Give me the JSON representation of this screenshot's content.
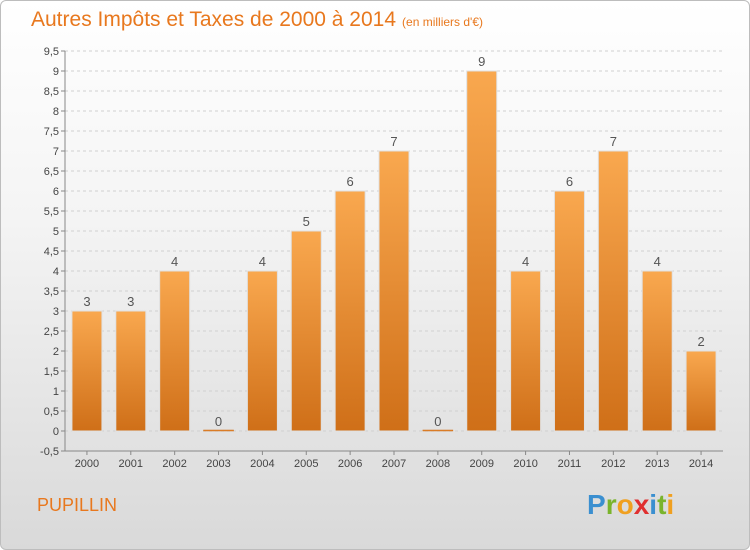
{
  "title": "Autres Impôts et Taxes de 2000 à 2014",
  "subtitle": "(en milliers d'€)",
  "commune": "PUPILLIN",
  "logo": {
    "text": "Proxiti",
    "letters": [
      {
        "ch": "P",
        "color": "#3a8fd0"
      },
      {
        "ch": "r",
        "color": "#7ab42c"
      },
      {
        "ch": "o",
        "color": "#f0a020"
      },
      {
        "ch": "x",
        "color": "#e03030"
      },
      {
        "ch": "i",
        "color": "#3a8fd0"
      },
      {
        "ch": "t",
        "color": "#7ab42c"
      },
      {
        "ch": "i",
        "color": "#f0a020"
      }
    ]
  },
  "colors": {
    "bar_light": "#f9a84f",
    "bar_dark": "#cf6f18",
    "title": "#e8781e",
    "grid": "#d0d0d0"
  },
  "chart_data": {
    "type": "bar",
    "categories": [
      "2000",
      "2001",
      "2002",
      "2003",
      "2004",
      "2005",
      "2006",
      "2007",
      "2008",
      "2009",
      "2010",
      "2011",
      "2012",
      "2013",
      "2014"
    ],
    "values": [
      3,
      3,
      4,
      0,
      4,
      5,
      6,
      7,
      0,
      9,
      4,
      6,
      7,
      4,
      2
    ],
    "data_labels": [
      "3",
      "3",
      "4",
      "0",
      "4",
      "5",
      "6",
      "7",
      "0",
      "9",
      "4",
      "6",
      "7",
      "4",
      "2"
    ],
    "ylim": [
      -0.5,
      9.5
    ],
    "yticks": [
      "-0,5",
      "0",
      "0,5",
      "1",
      "1,5",
      "2",
      "2,5",
      "3",
      "3,5",
      "4",
      "4,5",
      "5",
      "5,5",
      "6",
      "6,5",
      "7",
      "7,5",
      "8",
      "8,5",
      "9",
      "9,5"
    ],
    "ytick_values": [
      -0.5,
      0,
      0.5,
      1,
      1.5,
      2,
      2.5,
      3,
      3.5,
      4,
      4.5,
      5,
      5.5,
      6,
      6.5,
      7,
      7.5,
      8,
      8.5,
      9,
      9.5
    ],
    "grid": true,
    "legend": "none"
  }
}
